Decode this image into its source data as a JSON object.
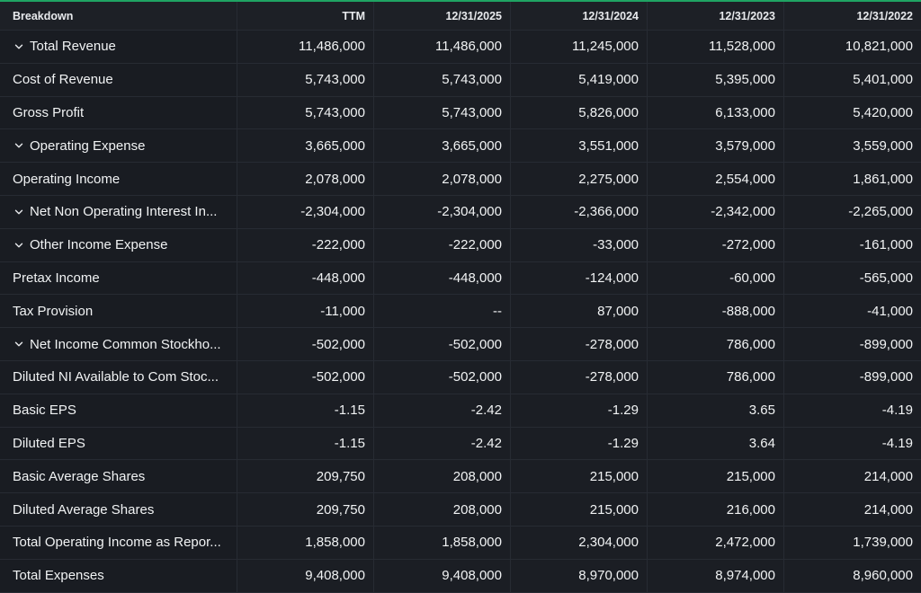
{
  "header": {
    "breakdown": "Breakdown",
    "periods": [
      "TTM",
      "12/31/2025",
      "12/31/2024",
      "12/31/2023",
      "12/31/2022"
    ]
  },
  "rows": [
    {
      "label": "Total Revenue",
      "expandable": true,
      "values": [
        "11,486,000",
        "11,486,000",
        "11,245,000",
        "11,528,000",
        "10,821,000"
      ]
    },
    {
      "label": "Cost of Revenue",
      "expandable": false,
      "values": [
        "5,743,000",
        "5,743,000",
        "5,419,000",
        "5,395,000",
        "5,401,000"
      ]
    },
    {
      "label": "Gross Profit",
      "expandable": false,
      "values": [
        "5,743,000",
        "5,743,000",
        "5,826,000",
        "6,133,000",
        "5,420,000"
      ]
    },
    {
      "label": "Operating Expense",
      "expandable": true,
      "values": [
        "3,665,000",
        "3,665,000",
        "3,551,000",
        "3,579,000",
        "3,559,000"
      ]
    },
    {
      "label": "Operating Income",
      "expandable": false,
      "values": [
        "2,078,000",
        "2,078,000",
        "2,275,000",
        "2,554,000",
        "1,861,000"
      ]
    },
    {
      "label": "Net Non Operating Interest In...",
      "expandable": true,
      "values": [
        "-2,304,000",
        "-2,304,000",
        "-2,366,000",
        "-2,342,000",
        "-2,265,000"
      ]
    },
    {
      "label": "Other Income Expense",
      "expandable": true,
      "values": [
        "-222,000",
        "-222,000",
        "-33,000",
        "-272,000",
        "-161,000"
      ]
    },
    {
      "label": "Pretax Income",
      "expandable": false,
      "values": [
        "-448,000",
        "-448,000",
        "-124,000",
        "-60,000",
        "-565,000"
      ]
    },
    {
      "label": "Tax Provision",
      "expandable": false,
      "values": [
        "-11,000",
        "--",
        "87,000",
        "-888,000",
        "-41,000"
      ]
    },
    {
      "label": "Net Income Common Stockho...",
      "expandable": true,
      "values": [
        "-502,000",
        "-502,000",
        "-278,000",
        "786,000",
        "-899,000"
      ]
    },
    {
      "label": "Diluted NI Available to Com Stoc...",
      "expandable": false,
      "values": [
        "-502,000",
        "-502,000",
        "-278,000",
        "786,000",
        "-899,000"
      ]
    },
    {
      "label": "Basic EPS",
      "expandable": false,
      "values": [
        "-1.15",
        "-2.42",
        "-1.29",
        "3.65",
        "-4.19"
      ]
    },
    {
      "label": "Diluted EPS",
      "expandable": false,
      "values": [
        "-1.15",
        "-2.42",
        "-1.29",
        "3.64",
        "-4.19"
      ]
    },
    {
      "label": "Basic Average Shares",
      "expandable": false,
      "values": [
        "209,750",
        "208,000",
        "215,000",
        "215,000",
        "214,000"
      ]
    },
    {
      "label": "Diluted Average Shares",
      "expandable": false,
      "values": [
        "209,750",
        "208,000",
        "215,000",
        "216,000",
        "214,000"
      ]
    },
    {
      "label": "Total Operating Income as Repor...",
      "expandable": false,
      "values": [
        "1,858,000",
        "1,858,000",
        "2,304,000",
        "2,472,000",
        "1,739,000"
      ]
    },
    {
      "label": "Total Expenses",
      "expandable": false,
      "values": [
        "9,408,000",
        "9,408,000",
        "8,970,000",
        "8,974,000",
        "8,960,000"
      ]
    }
  ],
  "colors": {
    "accent": "#1fa463",
    "background": "#14171c",
    "grid": "#272b33"
  }
}
